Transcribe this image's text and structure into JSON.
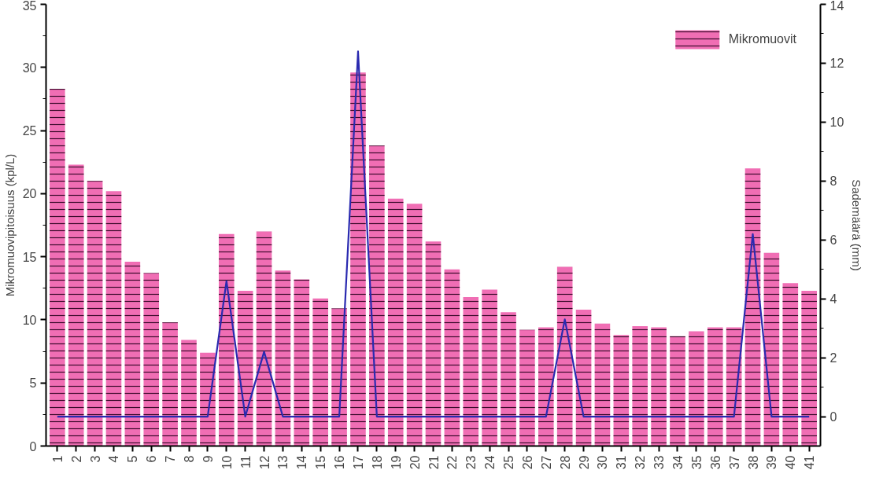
{
  "chart_data": {
    "type": "bar",
    "ylabel": "Mikromuovipitoisuus (kpl/L)",
    "y2label": "Sademäärä (mm)",
    "categories": [
      "1",
      "2",
      "3",
      "4",
      "5",
      "6",
      "7",
      "8",
      "9",
      "10",
      "11",
      "12",
      "13",
      "14",
      "15",
      "16",
      "17",
      "18",
      "19",
      "20",
      "21",
      "22",
      "23",
      "24",
      "25",
      "26",
      "27",
      "28",
      "29",
      "30",
      "31",
      "32",
      "33",
      "34",
      "35",
      "36",
      "37",
      "38",
      "39",
      "40",
      "41"
    ],
    "series": [
      {
        "name": "Mikromuovit",
        "color": "#f06eb4",
        "values": [
          28.3,
          22.3,
          21.0,
          20.2,
          14.6,
          13.7,
          9.8,
          8.4,
          7.4,
          16.8,
          12.3,
          17.0,
          13.9,
          13.2,
          11.7,
          10.9,
          29.6,
          23.8,
          19.6,
          19.2,
          16.2,
          14.0,
          11.8,
          12.4,
          10.6,
          9.2,
          9.4,
          14.2,
          10.8,
          9.7,
          8.8,
          9.5,
          9.4,
          8.7,
          9.1,
          9.4,
          9.4,
          22.0,
          15.3,
          12.9,
          12.3
        ]
      },
      {
        "type": "line",
        "axis": "y2",
        "color": "#2a2ab0",
        "values": [
          0,
          0,
          0,
          0,
          0,
          0,
          0,
          0,
          0,
          4.6,
          0,
          2.2,
          0,
          0,
          0,
          0,
          12.4,
          0,
          0,
          0,
          0,
          0,
          0,
          0,
          0,
          0,
          0,
          3.3,
          0,
          0,
          0,
          0,
          0,
          0,
          0,
          0,
          0,
          6.2,
          0,
          0,
          0
        ]
      }
    ],
    "ylim": [
      0,
      35
    ],
    "yticks": [
      0,
      5,
      10,
      15,
      20,
      25,
      30,
      35
    ],
    "y2lim": [
      -1,
      14
    ],
    "y2ticks": [
      0,
      2,
      4,
      6,
      8,
      10,
      12,
      14
    ],
    "grid": false,
    "legend": "top right",
    "marker": "none",
    "line_style": "solid"
  }
}
